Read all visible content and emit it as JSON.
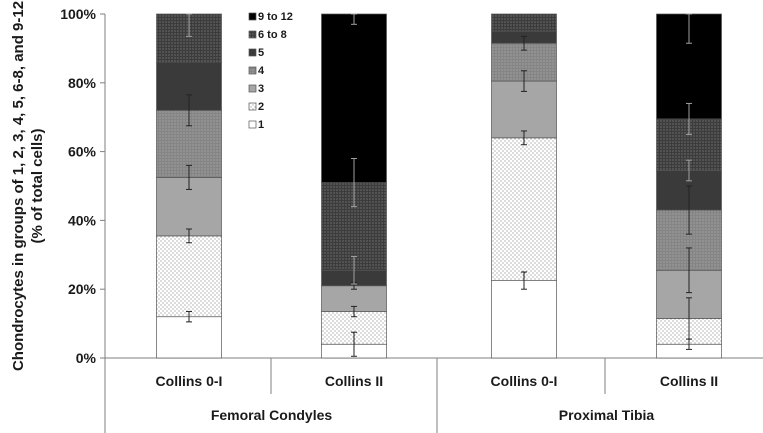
{
  "chart_data": {
    "type": "bar",
    "stacked": true,
    "ylabel_line1": "Chondrocytes in groups of 1, 2, 3, 4, 5, 6-8, and 9-12",
    "ylabel_line2": "(% of total cells)",
    "ylim": [
      0,
      100
    ],
    "yticks": [
      "0%",
      "20%",
      "40%",
      "60%",
      "80%",
      "100%"
    ],
    "ytick_values": [
      0,
      20,
      40,
      60,
      80,
      100
    ],
    "categories": [
      "Collins 0-I",
      "Collins II",
      "Collins 0-I",
      "Collins II"
    ],
    "groups": [
      {
        "label": "Femoral Condyles",
        "categories": [
          0,
          1
        ]
      },
      {
        "label": "Proximal Tibia",
        "categories": [
          2,
          3
        ]
      }
    ],
    "legend_position": "top-center",
    "series": [
      {
        "name": "1",
        "values": [
          12,
          4,
          22.5,
          4
        ],
        "fill": "white",
        "err": [
          1.5,
          3.5,
          2.5,
          1.5
        ]
      },
      {
        "name": "2",
        "values": [
          23.5,
          9.5,
          41.5,
          7.5
        ],
        "fill": "dots-light",
        "err": [
          2,
          1.5,
          2,
          6
        ]
      },
      {
        "name": "3",
        "values": [
          17,
          7.5,
          16.5,
          14
        ],
        "fill": "gray-mid",
        "err": [
          3.5,
          1,
          3,
          6.5
        ]
      },
      {
        "name": "4",
        "values": [
          19.5,
          0,
          11,
          17.5
        ],
        "fill": "gray-textured",
        "err": [
          4.5,
          0,
          2,
          7
        ]
      },
      {
        "name": "5",
        "values": [
          14,
          4.5,
          3.5,
          11.5
        ],
        "fill": "dark",
        "err": [
          0,
          4,
          0,
          3
        ]
      },
      {
        "name": "6 to 8",
        "values": [
          14,
          25.5,
          5,
          15
        ],
        "fill": "dark-textured",
        "err": [
          6.5,
          7,
          0,
          4.5
        ]
      },
      {
        "name": "9 to 12",
        "values": [
          0,
          49,
          0,
          30.5
        ],
        "fill": "black",
        "err": [
          0,
          3,
          0,
          8.5
        ]
      }
    ],
    "colors": {
      "c1": "#ffffff",
      "c2": "#ffffff",
      "c3": "#a6a6a6",
      "c4": "#808080",
      "c5": "#3a3a3a",
      "c6": "#474747",
      "c7": "#000000"
    }
  }
}
